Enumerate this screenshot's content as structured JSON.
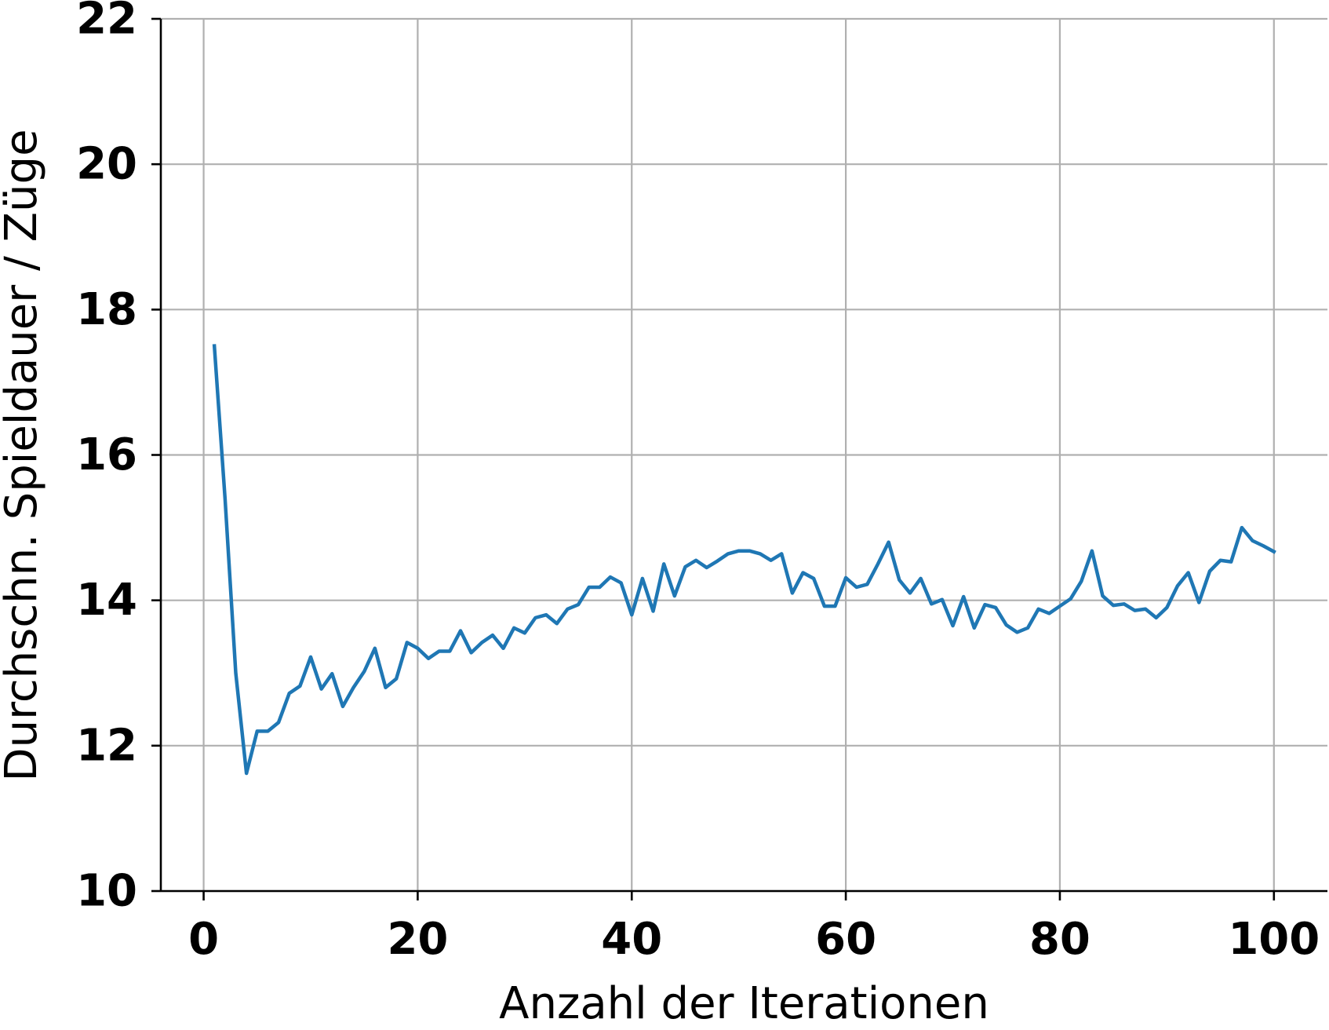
{
  "chart_data": {
    "type": "line",
    "title": "",
    "xlabel": "Anzahl der Iterationen",
    "ylabel": "Durchschn. Spieldauer / Züge",
    "xlim": [
      -4,
      105
    ],
    "ylim": [
      10,
      22
    ],
    "xticks": [
      0,
      20,
      40,
      60,
      80,
      100
    ],
    "xtick_labels": [
      "0",
      "20",
      "40",
      "60",
      "80",
      "100"
    ],
    "yticks": [
      10,
      12,
      14,
      16,
      18,
      20,
      22
    ],
    "ytick_labels": [
      "10",
      "12",
      "14",
      "16",
      "18",
      "20",
      "22"
    ],
    "grid": true,
    "series": [
      {
        "color": "#1f77b4",
        "x": [
          1,
          2,
          3,
          4,
          5,
          6,
          7,
          8,
          9,
          10,
          11,
          12,
          13,
          14,
          15,
          16,
          17,
          18,
          19,
          20,
          21,
          22,
          23,
          24,
          25,
          26,
          27,
          28,
          29,
          30,
          31,
          32,
          33,
          34,
          35,
          36,
          37,
          38,
          39,
          40,
          41,
          42,
          43,
          44,
          45,
          46,
          47,
          48,
          49,
          50,
          51,
          52,
          53,
          54,
          55,
          56,
          57,
          58,
          59,
          60,
          61,
          62,
          63,
          64,
          65,
          66,
          67,
          68,
          69,
          70,
          71,
          72,
          73,
          74,
          75,
          76,
          77,
          78,
          79,
          80,
          81,
          82,
          83,
          84,
          85,
          86,
          87,
          88,
          89,
          90,
          91,
          92,
          93,
          94,
          95,
          96,
          97,
          98,
          99,
          100
        ],
        "y": [
          17.5,
          15.4,
          13.0,
          11.62,
          12.2,
          12.2,
          12.32,
          12.72,
          12.82,
          13.22,
          12.78,
          12.99,
          12.54,
          12.8,
          13.02,
          13.34,
          12.8,
          12.92,
          13.42,
          13.34,
          13.2,
          13.3,
          13.3,
          13.58,
          13.28,
          13.42,
          13.52,
          13.34,
          13.62,
          13.55,
          13.76,
          13.8,
          13.68,
          13.88,
          13.94,
          14.18,
          14.18,
          14.32,
          14.24,
          13.8,
          14.3,
          13.85,
          14.5,
          14.06,
          14.46,
          14.55,
          14.45,
          14.54,
          14.64,
          14.68,
          14.68,
          14.64,
          14.55,
          14.64,
          14.1,
          14.38,
          14.3,
          13.92,
          13.92,
          14.31,
          14.18,
          14.22,
          14.5,
          14.8,
          14.28,
          14.1,
          14.3,
          13.95,
          14.01,
          13.65,
          14.05,
          13.62,
          13.94,
          13.9,
          13.66,
          13.56,
          13.62,
          13.88,
          13.82,
          13.92,
          14.02,
          14.26,
          14.68,
          14.06,
          13.93,
          13.95,
          13.86,
          13.88,
          13.76,
          13.9,
          14.2,
          14.38,
          13.97,
          14.4,
          14.55,
          14.53,
          15.0,
          14.82,
          14.75,
          14.67
        ]
      }
    ]
  }
}
